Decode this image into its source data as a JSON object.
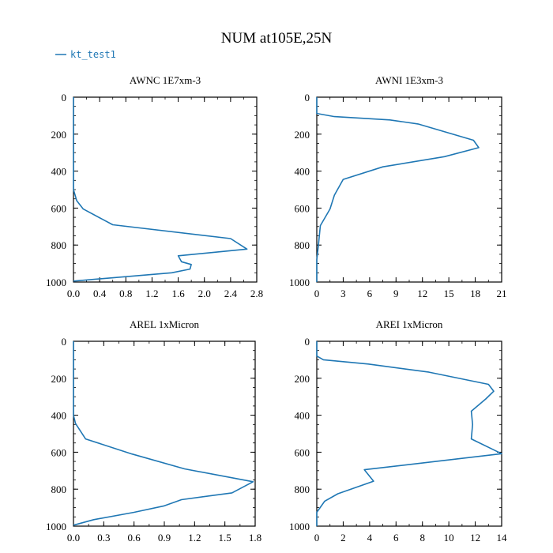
{
  "figure": {
    "title": "NUM at105E,25N",
    "legend": {
      "label": "kt_test1",
      "color": "#1f77b4",
      "placement": "top-left"
    }
  },
  "chart_data": [
    {
      "type": "line",
      "title": "AWNC  1E7xm-3",
      "xlim": [
        0,
        2.8
      ],
      "ylim": [
        1000,
        0
      ],
      "y_inverted": true,
      "xticks": [
        "0.0",
        "0.4",
        "0.8",
        "1.2",
        "1.6",
        "2.0",
        "2.4",
        "2.8"
      ],
      "yticks": [
        "0",
        "200",
        "400",
        "600",
        "800",
        "1000"
      ],
      "grid": false,
      "series": [
        {
          "name": "kt_test1",
          "color": "#1f77b4",
          "points": [
            [
              0,
              0
            ],
            [
              0,
              500
            ],
            [
              0.05,
              560
            ],
            [
              0.15,
              605
            ],
            [
              0.6,
              690
            ],
            [
              2.4,
              765
            ],
            [
              2.65,
              822
            ],
            [
              1.6,
              858
            ],
            [
              1.65,
              890
            ],
            [
              1.8,
              905
            ],
            [
              1.78,
              930
            ],
            [
              1.5,
              950
            ],
            [
              0,
              995
            ]
          ]
        }
      ]
    },
    {
      "type": "line",
      "title": "AWNI  1E3xm-3",
      "xlim": [
        0,
        21
      ],
      "ylim": [
        1000,
        0
      ],
      "y_inverted": true,
      "xticks": [
        "0",
        "3",
        "6",
        "9",
        "12",
        "15",
        "18",
        "21"
      ],
      "yticks": [
        "0",
        "200",
        "400",
        "600",
        "800",
        "1000"
      ],
      "grid": false,
      "series": [
        {
          "name": "kt_test1",
          "color": "#1f77b4",
          "points": [
            [
              0,
              0
            ],
            [
              0,
              88
            ],
            [
              2,
              105
            ],
            [
              8.3,
              123
            ],
            [
              11.5,
              145
            ],
            [
              17.8,
              233
            ],
            [
              18.4,
              273
            ],
            [
              14.5,
              322
            ],
            [
              7.5,
              377
            ],
            [
              3,
              445
            ],
            [
              2,
              530
            ],
            [
              1.5,
              605
            ],
            [
              0.4,
              695
            ],
            [
              0.2,
              795
            ],
            [
              0,
              880
            ],
            [
              0,
              1000
            ]
          ]
        }
      ]
    },
    {
      "type": "line",
      "title": "AREL  1xMicron",
      "xlim": [
        0,
        1.8
      ],
      "ylim": [
        1000,
        0
      ],
      "y_inverted": true,
      "xticks": [
        "0.0",
        "0.3",
        "0.6",
        "0.9",
        "1.2",
        "1.5",
        "1.8"
      ],
      "yticks": [
        "0",
        "200",
        "400",
        "600",
        "800",
        "1000"
      ],
      "grid": false,
      "series": [
        {
          "name": "kt_test1",
          "color": "#1f77b4",
          "points": [
            [
              0,
              0
            ],
            [
              0,
              400
            ],
            [
              0.02,
              445
            ],
            [
              0.12,
              528
            ],
            [
              0.58,
              610
            ],
            [
              1.1,
              690
            ],
            [
              1.78,
              760
            ],
            [
              1.57,
              820
            ],
            [
              1.07,
              857
            ],
            [
              0.9,
              890
            ],
            [
              0.6,
              925
            ],
            [
              0.2,
              965
            ],
            [
              0,
              995
            ]
          ]
        }
      ]
    },
    {
      "type": "line",
      "title": "AREI  1xMicron",
      "xlim": [
        0,
        14
      ],
      "ylim": [
        1000,
        0
      ],
      "y_inverted": true,
      "xticks": [
        "0",
        "2",
        "4",
        "6",
        "8",
        "10",
        "12",
        "14"
      ],
      "yticks": [
        "0",
        "200",
        "400",
        "600",
        "800",
        "1000"
      ],
      "grid": false,
      "series": [
        {
          "name": "kt_test1",
          "color": "#1f77b4",
          "points": [
            [
              0,
              0
            ],
            [
              0,
              80
            ],
            [
              0.5,
              100
            ],
            [
              3.9,
              123
            ],
            [
              8.5,
              167
            ],
            [
              13,
              233
            ],
            [
              13.4,
              270
            ],
            [
              12.8,
              312
            ],
            [
              11.7,
              378
            ],
            [
              11.8,
              450
            ],
            [
              11.7,
              528
            ],
            [
              14,
              608
            ],
            [
              3.6,
              695
            ],
            [
              4.3,
              757
            ],
            [
              1.6,
              825
            ],
            [
              0.6,
              865
            ],
            [
              0,
              925
            ],
            [
              0,
              1000
            ]
          ]
        }
      ]
    }
  ]
}
